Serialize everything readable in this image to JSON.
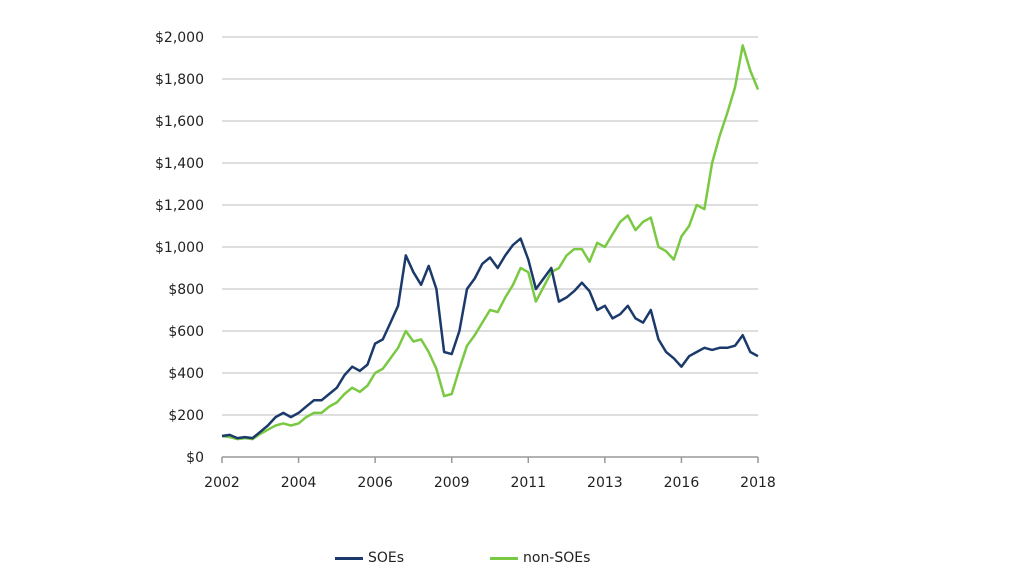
{
  "chart_data": {
    "type": "line",
    "title": "",
    "xlabel": "",
    "ylabel": "",
    "x_tick_labels": [
      "2002",
      "2004",
      "2006",
      "2009",
      "2011",
      "2013",
      "2016",
      "2018"
    ],
    "y_ticks": [
      0,
      200,
      400,
      600,
      800,
      1000,
      1200,
      1400,
      1600,
      1800,
      2000
    ],
    "y_tick_labels": [
      "$0",
      "$200",
      "$400",
      "$600",
      "$800",
      "$1,000",
      "$1,200",
      "$1,400",
      "$1,600",
      "$1,800",
      "$2,000"
    ],
    "ylim": [
      0,
      2000
    ],
    "grid": "horizontal",
    "legend_position": "bottom",
    "series": [
      {
        "name": "SOEs",
        "color": "#1b3a6b",
        "values": [
          100,
          105,
          90,
          95,
          90,
          120,
          150,
          190,
          210,
          190,
          210,
          240,
          270,
          270,
          300,
          330,
          390,
          430,
          410,
          440,
          540,
          560,
          640,
          720,
          960,
          880,
          820,
          910,
          800,
          500,
          490,
          600,
          800,
          850,
          920,
          950,
          900,
          960,
          1010,
          1040,
          940,
          800,
          850,
          900,
          740,
          760,
          790,
          830,
          790,
          700,
          720,
          660,
          680,
          720,
          660,
          640,
          700,
          560,
          500,
          470,
          430,
          480,
          500,
          520,
          510,
          520,
          520,
          530,
          580,
          500,
          480
        ]
      },
      {
        "name": "non-SOEs",
        "color": "#7ac943",
        "values": [
          100,
          95,
          85,
          90,
          85,
          110,
          130,
          150,
          160,
          150,
          160,
          190,
          210,
          210,
          240,
          260,
          300,
          330,
          310,
          340,
          400,
          420,
          470,
          520,
          600,
          550,
          560,
          500,
          420,
          290,
          300,
          420,
          530,
          580,
          640,
          700,
          690,
          760,
          820,
          900,
          880,
          740,
          810,
          880,
          900,
          960,
          990,
          990,
          930,
          1020,
          1000,
          1060,
          1120,
          1150,
          1080,
          1120,
          1140,
          1000,
          980,
          940,
          1050,
          1100,
          1200,
          1180,
          1400,
          1530,
          1640,
          1760,
          1960,
          1840,
          1750
        ]
      }
    ]
  }
}
